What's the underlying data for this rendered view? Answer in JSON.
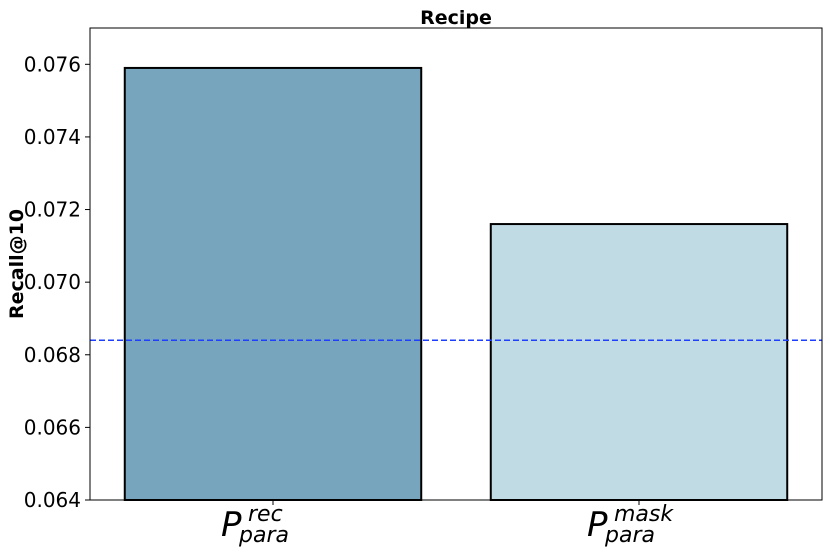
{
  "chart_data": {
    "type": "bar",
    "title": "Recipe",
    "xlabel": "",
    "ylabel": "Recall@10",
    "ylim": [
      0.064,
      0.077
    ],
    "yticks": [
      "0.064",
      "0.066",
      "0.068",
      "0.070",
      "0.072",
      "0.074",
      "0.076"
    ],
    "categories": [
      {
        "main": "P",
        "sup": "rec",
        "sub": "para"
      },
      {
        "main": "P",
        "sup": "mask",
        "sub": "para"
      }
    ],
    "values": [
      0.0759,
      0.0716
    ],
    "bar_colors": [
      "#76a5bd",
      "#c1dbe5"
    ],
    "reference_line": {
      "value": 0.0684,
      "style": "dashed",
      "color": "#1f3fff"
    },
    "grid": false,
    "legend": "none"
  }
}
